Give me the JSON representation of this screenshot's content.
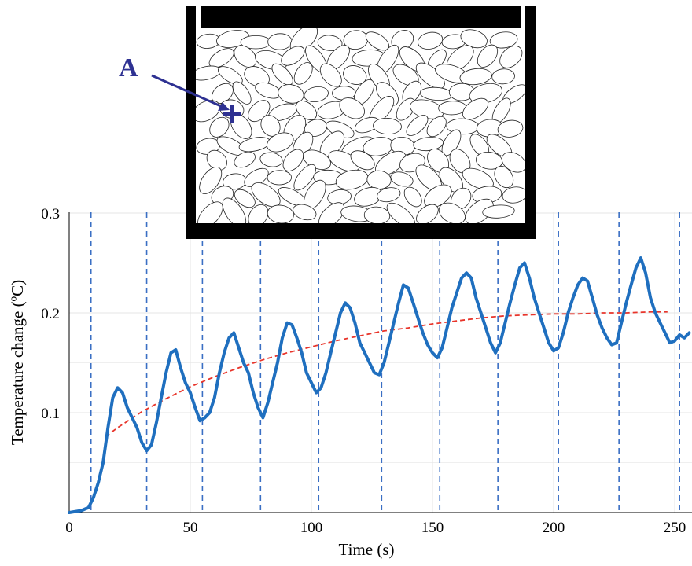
{
  "chart_data": {
    "type": "line",
    "title": "",
    "xlabel": "Time (s)",
    "ylabel": "Temperature change (ºC)",
    "xlim": [
      0,
      260
    ],
    "ylim": [
      0,
      0.3
    ],
    "x_ticks": [
      "0",
      "50",
      "100",
      "150",
      "200",
      "250"
    ],
    "y_ticks": [
      "0.1",
      "0.2",
      "0.3"
    ],
    "grid": true,
    "colors": {
      "measured": "#1f6fbf",
      "fit": "#e8342a",
      "marker": "#2e3192",
      "vertical_lines": "#3a6fc4",
      "grid": "#e4e4e4"
    },
    "cycle_markers_x": [
      9,
      32,
      55,
      79,
      103,
      129,
      153,
      177,
      202,
      227,
      252
    ],
    "series": [
      {
        "points": [
          [
            0,
            0.0
          ],
          [
            5,
            0.002
          ],
          [
            8,
            0.005
          ],
          [
            10,
            0.015
          ],
          [
            12,
            0.03
          ],
          [
            14,
            0.05
          ],
          [
            16,
            0.085
          ],
          [
            18,
            0.115
          ],
          [
            20,
            0.125
          ],
          [
            22,
            0.12
          ],
          [
            24,
            0.105
          ],
          [
            26,
            0.095
          ],
          [
            28,
            0.085
          ],
          [
            30,
            0.07
          ],
          [
            32,
            0.062
          ],
          [
            34,
            0.068
          ],
          [
            36,
            0.09
          ],
          [
            38,
            0.115
          ],
          [
            40,
            0.14
          ],
          [
            42,
            0.16
          ],
          [
            44,
            0.163
          ],
          [
            46,
            0.145
          ],
          [
            48,
            0.13
          ],
          [
            50,
            0.12
          ],
          [
            52,
            0.105
          ],
          [
            54,
            0.092
          ],
          [
            56,
            0.095
          ],
          [
            58,
            0.1
          ],
          [
            60,
            0.115
          ],
          [
            62,
            0.14
          ],
          [
            64,
            0.16
          ],
          [
            66,
            0.175
          ],
          [
            68,
            0.18
          ],
          [
            70,
            0.165
          ],
          [
            72,
            0.15
          ],
          [
            74,
            0.14
          ],
          [
            76,
            0.12
          ],
          [
            78,
            0.105
          ],
          [
            80,
            0.095
          ],
          [
            82,
            0.11
          ],
          [
            84,
            0.13
          ],
          [
            86,
            0.15
          ],
          [
            88,
            0.175
          ],
          [
            90,
            0.19
          ],
          [
            92,
            0.188
          ],
          [
            94,
            0.175
          ],
          [
            96,
            0.16
          ],
          [
            98,
            0.14
          ],
          [
            100,
            0.13
          ],
          [
            102,
            0.12
          ],
          [
            104,
            0.125
          ],
          [
            106,
            0.14
          ],
          [
            108,
            0.16
          ],
          [
            110,
            0.18
          ],
          [
            112,
            0.2
          ],
          [
            114,
            0.21
          ],
          [
            116,
            0.205
          ],
          [
            118,
            0.19
          ],
          [
            120,
            0.17
          ],
          [
            122,
            0.16
          ],
          [
            124,
            0.15
          ],
          [
            126,
            0.14
          ],
          [
            128,
            0.138
          ],
          [
            130,
            0.15
          ],
          [
            132,
            0.17
          ],
          [
            134,
            0.19
          ],
          [
            136,
            0.21
          ],
          [
            138,
            0.228
          ],
          [
            140,
            0.225
          ],
          [
            142,
            0.21
          ],
          [
            144,
            0.195
          ],
          [
            146,
            0.18
          ],
          [
            148,
            0.168
          ],
          [
            150,
            0.16
          ],
          [
            152,
            0.155
          ],
          [
            154,
            0.165
          ],
          [
            156,
            0.185
          ],
          [
            158,
            0.205
          ],
          [
            160,
            0.22
          ],
          [
            162,
            0.235
          ],
          [
            164,
            0.24
          ],
          [
            166,
            0.235
          ],
          [
            168,
            0.215
          ],
          [
            170,
            0.2
          ],
          [
            172,
            0.185
          ],
          [
            174,
            0.17
          ],
          [
            176,
            0.16
          ],
          [
            178,
            0.17
          ],
          [
            180,
            0.19
          ],
          [
            182,
            0.21
          ],
          [
            184,
            0.228
          ],
          [
            186,
            0.245
          ],
          [
            188,
            0.25
          ],
          [
            190,
            0.235
          ],
          [
            192,
            0.215
          ],
          [
            194,
            0.2
          ],
          [
            196,
            0.185
          ],
          [
            198,
            0.17
          ],
          [
            200,
            0.162
          ],
          [
            202,
            0.165
          ],
          [
            204,
            0.18
          ],
          [
            206,
            0.2
          ],
          [
            208,
            0.215
          ],
          [
            210,
            0.228
          ],
          [
            212,
            0.235
          ],
          [
            214,
            0.232
          ],
          [
            216,
            0.215
          ],
          [
            218,
            0.198
          ],
          [
            220,
            0.185
          ],
          [
            222,
            0.175
          ],
          [
            224,
            0.168
          ],
          [
            226,
            0.17
          ],
          [
            228,
            0.19
          ],
          [
            230,
            0.21
          ],
          [
            232,
            0.228
          ],
          [
            234,
            0.245
          ],
          [
            236,
            0.255
          ],
          [
            238,
            0.24
          ],
          [
            240,
            0.215
          ],
          [
            242,
            0.2
          ],
          [
            244,
            0.19
          ],
          [
            246,
            0.18
          ],
          [
            248,
            0.17
          ],
          [
            250,
            0.172
          ],
          [
            252,
            0.178
          ],
          [
            254,
            0.175
          ],
          [
            256,
            0.18
          ]
        ]
      },
      {
        "points": [
          [
            15,
            0.076
          ],
          [
            20,
            0.085
          ],
          [
            25,
            0.093
          ],
          [
            30,
            0.101
          ],
          [
            40,
            0.114
          ],
          [
            50,
            0.126
          ],
          [
            60,
            0.136
          ],
          [
            70,
            0.145
          ],
          [
            80,
            0.153
          ],
          [
            90,
            0.16
          ],
          [
            100,
            0.166
          ],
          [
            110,
            0.172
          ],
          [
            120,
            0.177
          ],
          [
            130,
            0.182
          ],
          [
            140,
            0.185
          ],
          [
            150,
            0.189
          ],
          [
            160,
            0.192
          ],
          [
            170,
            0.195
          ],
          [
            180,
            0.197
          ],
          [
            190,
            0.198
          ],
          [
            200,
            0.199
          ],
          [
            210,
            0.199
          ],
          [
            220,
            0.2
          ],
          [
            230,
            0.2
          ],
          [
            240,
            0.201
          ],
          [
            247,
            0.201
          ]
        ]
      }
    ]
  },
  "inset": {
    "marker_label": "A"
  }
}
